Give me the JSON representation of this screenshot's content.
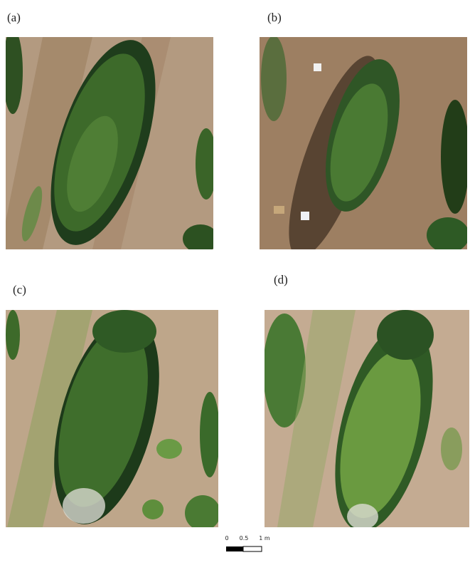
{
  "panels": [
    {
      "label": "(a)"
    },
    {
      "label": "(b)"
    },
    {
      "label": "(c)"
    },
    {
      "label": "(d)"
    }
  ],
  "scale_bar": {
    "labels": [
      "0",
      "0.5",
      "1 m"
    ]
  }
}
